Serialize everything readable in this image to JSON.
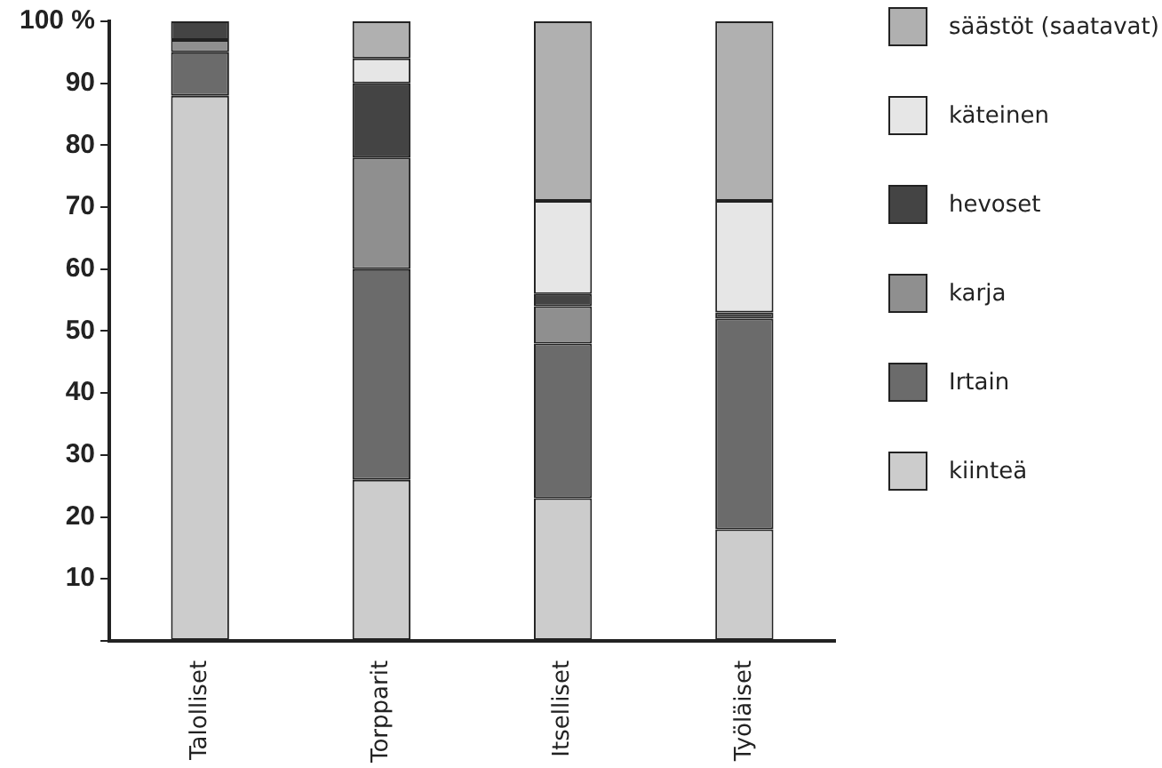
{
  "chart_data": {
    "type": "bar",
    "stacked": true,
    "categories": [
      "Talolliset",
      "Torpparit",
      "Itselliset",
      "Työläiset"
    ],
    "series": [
      {
        "name": "kiinteä",
        "color": "#cccccc",
        "values": [
          88,
          26,
          23,
          18
        ]
      },
      {
        "name": "Irtain",
        "color": "#6b6b6b",
        "values": [
          7,
          34,
          25,
          34
        ]
      },
      {
        "name": "karja",
        "color": "#8f8f8f",
        "values": [
          2,
          18,
          6,
          0
        ]
      },
      {
        "name": "hevoset",
        "color": "#444444",
        "values": [
          3,
          12,
          2,
          1
        ]
      },
      {
        "name": "käteinen",
        "color": "#e6e6e6",
        "values": [
          0,
          4,
          15,
          18
        ]
      },
      {
        "name": "säästöt (saatavat)",
        "color": "#b0b0b0",
        "values": [
          0,
          6,
          29,
          29
        ]
      }
    ],
    "ylim": [
      0,
      100
    ],
    "yticks": [
      {
        "value": 0,
        "label": null
      },
      10,
      20,
      30,
      40,
      50,
      60,
      70,
      80,
      90,
      {
        "value": 100,
        "label": "100 %"
      }
    ],
    "grid": false,
    "legend": "right"
  }
}
